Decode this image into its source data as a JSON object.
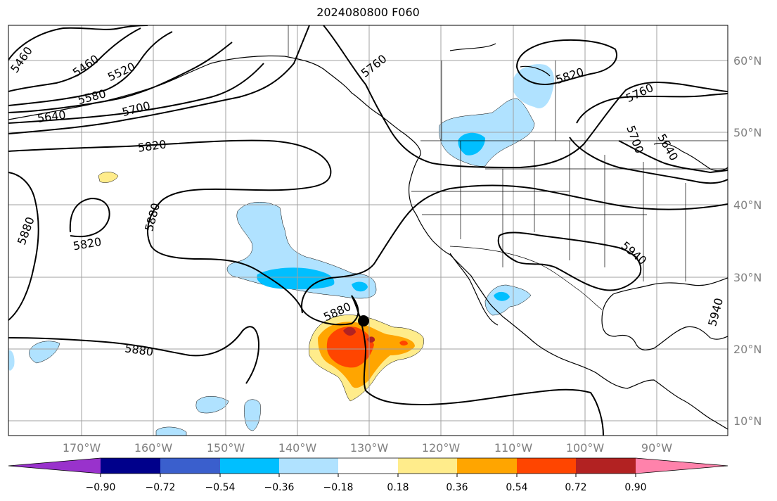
{
  "title": "2024080800 F060",
  "map": {
    "lat_labels": [
      "60°N",
      "50°N",
      "40°N",
      "30°N",
      "20°N",
      "10°N"
    ],
    "lon_labels": [
      "170°W",
      "160°W",
      "150°W",
      "140°W",
      "130°W",
      "120°W",
      "110°W",
      "100°W",
      "90°W"
    ],
    "contour_labels": [
      "5460",
      "5460",
      "5520",
      "5580",
      "5640",
      "5700",
      "5820",
      "5880",
      "5820",
      "5880",
      "5880",
      "5880",
      "5760",
      "5820",
      "5760",
      "5700",
      "5640",
      "5940",
      "5940"
    ],
    "storm_center": {
      "lon": -130.8,
      "lat": 23.6
    }
  },
  "colorbar": {
    "ticks": [
      "−0.90",
      "−0.72",
      "−0.54",
      "−0.36",
      "−0.18",
      "0.18",
      "0.36",
      "0.54",
      "0.72",
      "0.90"
    ],
    "colors": [
      "#9932cc",
      "#00008b",
      "#3a5fcd",
      "#00bfff",
      "#b0e2ff",
      "#ffffff",
      "#ffec8b",
      "#ffa500",
      "#ff4500",
      "#b22222",
      "#ff82ab"
    ]
  },
  "colors": {
    "grid": "#a0a0a0",
    "contour": "#000000"
  }
}
